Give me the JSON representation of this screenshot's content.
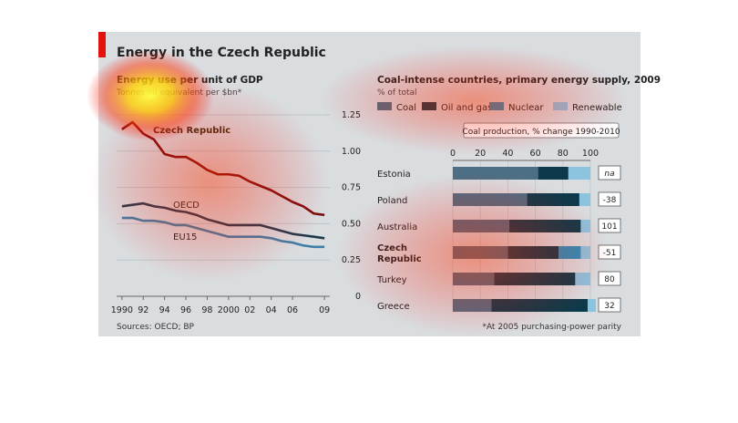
{
  "figure": {
    "title": "Energy in the Czech Republic",
    "sources": "Sources: OECD; BP",
    "footnote": "*At 2005 purchasing-power parity"
  },
  "colors": {
    "background": "#d9dde0",
    "title_bar": "#e3120b",
    "czech_line": "#7a0e0e",
    "oecd_line": "#1f3a4d",
    "eu_line": "#3d7fa6",
    "coal": "#4d6f85",
    "oil_gas": "#0d3a4a",
    "nuclear": "#2a8fbd",
    "renewable": "#8cc4e0",
    "text": "#222222"
  },
  "chart_data": [
    {
      "type": "line",
      "title": "Energy use per unit of GDP",
      "subtitle": "Tonnes oil equivalent per $bn*",
      "xlabel": "",
      "ylabel": "",
      "x_tick_labels": [
        "1990",
        "92",
        "94",
        "96",
        "98",
        "2000",
        "02",
        "04",
        "06",
        "09"
      ],
      "x_tick_values": [
        1990,
        1992,
        1994,
        1996,
        1998,
        2000,
        2002,
        2004,
        2006,
        2009
      ],
      "y_tick_labels": [
        "0",
        "0.25",
        "0.50",
        "0.75",
        "1.00",
        "1.25"
      ],
      "y_tick_values": [
        0,
        0.25,
        0.5,
        0.75,
        1.0,
        1.25
      ],
      "xlim": [
        1989.5,
        2009.5
      ],
      "ylim": [
        0,
        1.3
      ],
      "grid": true,
      "x": [
        1990,
        1991,
        1992,
        1993,
        1994,
        1995,
        1996,
        1997,
        1998,
        1999,
        2000,
        2001,
        2002,
        2003,
        2004,
        2005,
        2006,
        2007,
        2008,
        2009
      ],
      "series": [
        {
          "name": "Czech Republic",
          "values": [
            1.15,
            1.2,
            1.12,
            1.08,
            0.98,
            0.96,
            0.96,
            0.92,
            0.87,
            0.84,
            0.84,
            0.83,
            0.79,
            0.76,
            0.73,
            0.69,
            0.65,
            0.62,
            0.57,
            0.56
          ]
        },
        {
          "name": "OECD",
          "values": [
            0.62,
            0.63,
            0.64,
            0.62,
            0.61,
            0.59,
            0.58,
            0.56,
            0.53,
            0.51,
            0.49,
            0.49,
            0.49,
            0.49,
            0.47,
            0.45,
            0.43,
            0.42,
            0.41,
            0.4
          ]
        },
        {
          "name": "EU15",
          "values": [
            0.54,
            0.54,
            0.52,
            0.52,
            0.51,
            0.49,
            0.49,
            0.47,
            0.45,
            0.43,
            0.41,
            0.41,
            0.41,
            0.41,
            0.4,
            0.38,
            0.37,
            0.35,
            0.34,
            0.34
          ]
        }
      ]
    },
    {
      "type": "bar",
      "orientation": "horizontal",
      "stacked": true,
      "title": "Coal-intense countries, primary energy supply, 2009",
      "subtitle": "% of total",
      "legend": [
        "Coal",
        "Oil and gas",
        "Nuclear",
        "Renewable"
      ],
      "legend_position": "top",
      "categories": [
        "Estonia",
        "Poland",
        "Australia",
        "Czech Republic",
        "Turkey",
        "Greece"
      ],
      "x_tick_labels": [
        "0",
        "20",
        "40",
        "60",
        "80",
        "100"
      ],
      "x_tick_values": [
        0,
        20,
        40,
        60,
        80,
        100
      ],
      "xlim": [
        0,
        100
      ],
      "series": [
        {
          "name": "Coal",
          "values": [
            62,
            54,
            41,
            40,
            30,
            28
          ]
        },
        {
          "name": "Oil and gas",
          "values": [
            22,
            38,
            52,
            37,
            59,
            70
          ]
        },
        {
          "name": "Nuclear",
          "values": [
            0,
            0,
            0,
            16,
            0,
            0
          ]
        },
        {
          "name": "Renewable",
          "values": [
            16,
            8,
            7,
            7,
            11,
            6
          ]
        }
      ],
      "side_panel": {
        "title": "Coal production, % change 1990-2010",
        "values": [
          "na",
          "-38",
          "101",
          "-51",
          "80",
          "32"
        ]
      }
    }
  ]
}
